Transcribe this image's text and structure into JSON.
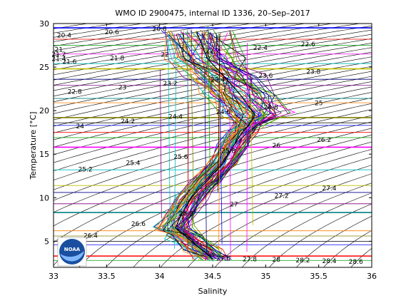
{
  "chart_data": {
    "type": "line",
    "title": "WMO ID 2900475, internal ID 1336, 20–Sep–2017",
    "xlabel": "Salinity",
    "ylabel": "Temperature [°C]",
    "xlim": [
      33,
      36
    ],
    "ylim": [
      2,
      30
    ],
    "x_ticks": [
      33,
      33.5,
      34,
      34.5,
      35,
      35.5,
      36
    ],
    "x_tick_labels": [
      "33",
      "33.5",
      "34",
      "34.5",
      "35",
      "35.5",
      "36"
    ],
    "y_ticks": [
      5,
      10,
      15,
      20,
      25,
      30
    ],
    "y_tick_labels": [
      "5",
      "10",
      "15",
      "20",
      "25",
      "30"
    ],
    "grid": false,
    "density_contour_labels": [
      "20.4",
      "20.6",
      "20.8",
      "21",
      "21.2",
      "21.4",
      "21.6",
      "21.8",
      "22",
      "22.2",
      "22.4",
      "22.6",
      "22.8",
      "23",
      "23.2",
      "23.4",
      "23.6",
      "23.8",
      "24",
      "24.2",
      "24.4",
      "24.6",
      "24.8",
      "25",
      "25.2",
      "25.4",
      "25.6",
      "25.8",
      "26",
      "26.2",
      "26.4",
      "26.6",
      "26.8",
      "27",
      "27.2",
      "27.4",
      "27.6",
      "27.8",
      "28",
      "28.2",
      "28.4",
      "28.6"
    ],
    "mean_profile": {
      "name": "",
      "x": [
        34.5,
        34.4,
        34.25,
        34.15,
        34.2,
        34.3,
        34.45,
        34.6,
        34.7,
        34.78,
        34.85,
        34.9,
        34.75,
        34.6,
        34.45,
        34.35
      ],
      "y": [
        3,
        4,
        5.5,
        6.5,
        8,
        10,
        12,
        14,
        16,
        17.5,
        18.5,
        19.5,
        22,
        24,
        26,
        29
      ]
    },
    "series_colors": [
      "#0000ff",
      "#ff0000",
      "#00a000",
      "#ff00ff",
      "#00c0c0",
      "#c0c000",
      "#000080",
      "#800080",
      "#008080",
      "#ff8000",
      "#808000",
      "#000000"
    ],
    "logo_text": "NOAA"
  }
}
